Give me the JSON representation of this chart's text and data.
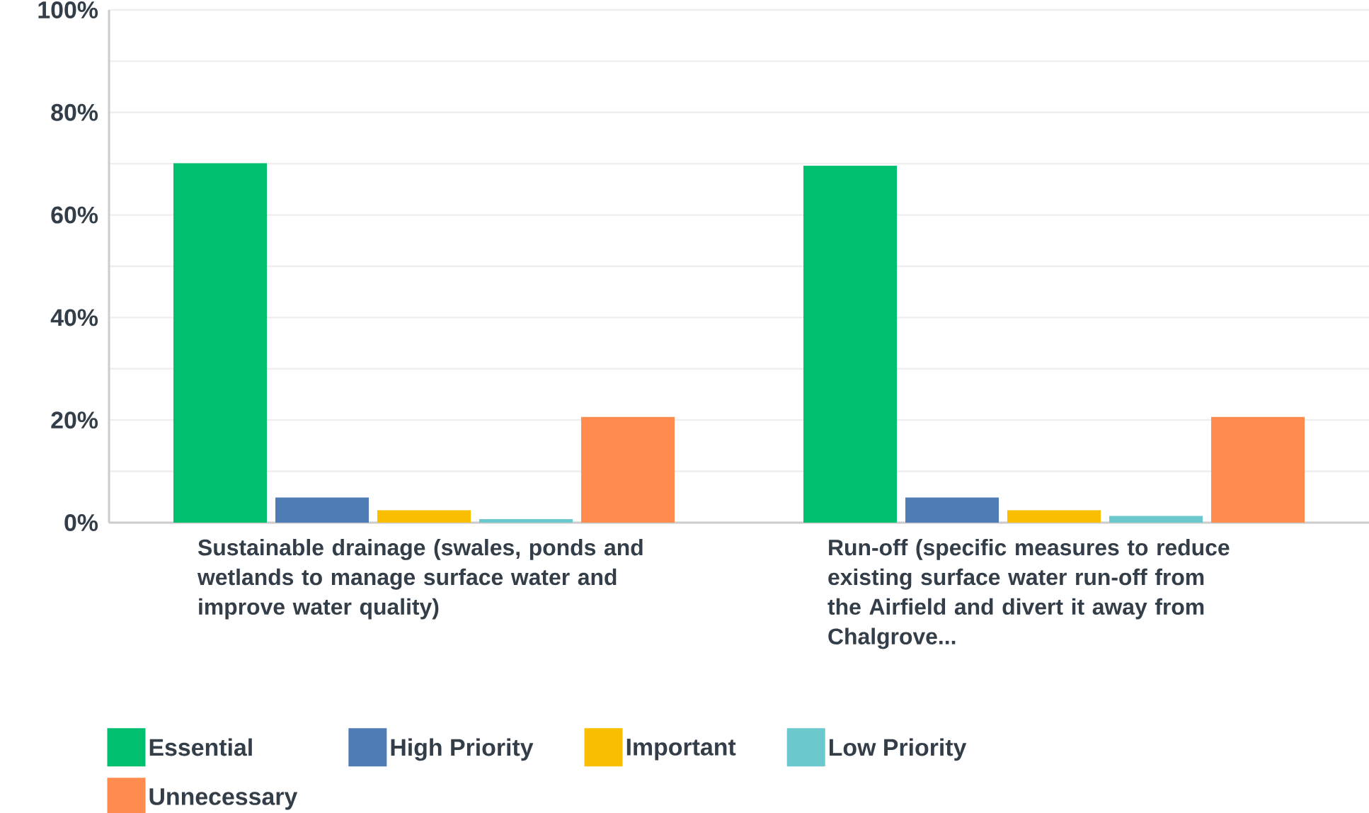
{
  "chart_data": {
    "type": "bar",
    "categories": [
      "Sustainable drainage (swales, ponds and wetlands to manage surface water and improve water quality)",
      "Run-off (specific measures to reduce existing surface water run-off from the Airfield and divert it away from Chalgrove..."
    ],
    "series": [
      {
        "name": "Essential",
        "color": "#00bf6f",
        "values": [
          70.1,
          69.6
        ]
      },
      {
        "name": "High Priority",
        "color": "#507cb6",
        "values": [
          4.9,
          4.9
        ]
      },
      {
        "name": "Important",
        "color": "#f9be00",
        "values": [
          2.4,
          2.4
        ]
      },
      {
        "name": "Low Priority",
        "color": "#6bc8cd",
        "values": [
          0.7,
          1.3
        ]
      },
      {
        "name": "Unnecessary",
        "color": "#ff8b4f",
        "values": [
          20.6,
          20.6
        ]
      }
    ],
    "ylim": [
      0,
      100
    ],
    "yticks": [
      {
        "value": 0,
        "label": "0%"
      },
      {
        "value": 10,
        "label": null
      },
      {
        "value": 20,
        "label": "20%"
      },
      {
        "value": 30,
        "label": null
      },
      {
        "value": 40,
        "label": "40%"
      },
      {
        "value": 50,
        "label": null
      },
      {
        "value": 60,
        "label": "60%"
      },
      {
        "value": 70,
        "label": null
      },
      {
        "value": 80,
        "label": "80%"
      },
      {
        "value": 90,
        "label": null
      },
      {
        "value": 100,
        "label": "100%"
      }
    ],
    "grid": "y",
    "legend": "bottom"
  }
}
